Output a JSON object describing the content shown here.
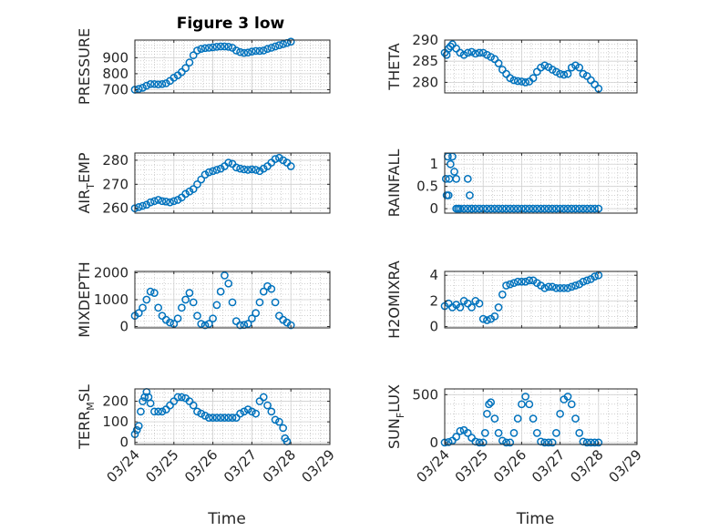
{
  "colors": {
    "marker": "#0072BD",
    "axis": "#262626",
    "grid": "#b3b3b3",
    "background": "#ffffff"
  },
  "chart_data": [
    {
      "type": "scatter",
      "id": "pressure",
      "title": "Figure 3 low",
      "ylabel_parts": [
        "PRESSURE"
      ],
      "xlabel": "",
      "ylim": [
        680,
        1010
      ],
      "yticks": [
        700,
        800,
        900
      ],
      "xlim": [
        0,
        5
      ],
      "xticks": [
        0,
        1,
        2,
        3,
        4,
        5
      ],
      "xticklabels": [
        "03/24",
        "03/25",
        "03/26",
        "03/27",
        "03/28",
        "03/29"
      ],
      "show_xticklabels": false,
      "grid": true,
      "x": [
        0.0,
        0.1,
        0.2,
        0.3,
        0.4,
        0.5,
        0.6,
        0.7,
        0.8,
        0.9,
        1.0,
        1.1,
        1.2,
        1.3,
        1.4,
        1.5,
        1.6,
        1.7,
        1.8,
        1.9,
        2.0,
        2.1,
        2.2,
        2.3,
        2.4,
        2.5,
        2.6,
        2.7,
        2.8,
        2.9,
        3.0,
        3.1,
        3.2,
        3.3,
        3.4,
        3.5,
        3.6,
        3.7,
        3.8,
        3.9,
        4.0
      ],
      "y": [
        700,
        705,
        712,
        725,
        735,
        735,
        733,
        735,
        740,
        755,
        775,
        790,
        810,
        835,
        870,
        915,
        945,
        955,
        960,
        962,
        965,
        968,
        970,
        970,
        968,
        962,
        945,
        935,
        930,
        932,
        938,
        942,
        942,
        945,
        955,
        962,
        970,
        978,
        985,
        992,
        1000
      ]
    },
    {
      "type": "scatter",
      "id": "theta",
      "ylabel_parts": [
        "THETA"
      ],
      "xlabel": "",
      "ylim": [
        277.5,
        290
      ],
      "yticks": [
        280,
        285,
        290
      ],
      "xlim": [
        0,
        5
      ],
      "xticks": [
        0,
        1,
        2,
        3,
        4,
        5
      ],
      "xticklabels": [
        "03/24",
        "03/25",
        "03/26",
        "03/27",
        "03/28",
        "03/29"
      ],
      "show_xticklabels": false,
      "grid": true,
      "x": [
        0.0,
        0.05,
        0.1,
        0.15,
        0.2,
        0.3,
        0.4,
        0.5,
        0.6,
        0.7,
        0.8,
        0.9,
        1.0,
        1.1,
        1.2,
        1.3,
        1.4,
        1.5,
        1.6,
        1.7,
        1.8,
        1.9,
        2.0,
        2.1,
        2.2,
        2.3,
        2.4,
        2.5,
        2.6,
        2.7,
        2.8,
        2.9,
        3.0,
        3.1,
        3.2,
        3.3,
        3.4,
        3.5,
        3.6,
        3.7,
        3.8,
        3.9,
        4.0
      ],
      "y": [
        287,
        286.5,
        288,
        288.5,
        289,
        288,
        287,
        286.5,
        287,
        287.2,
        286.8,
        287,
        287,
        286.5,
        286,
        285.5,
        284.5,
        283,
        282,
        281,
        280.5,
        280.3,
        280.2,
        280,
        280.2,
        281,
        282.5,
        283.5,
        284,
        283.6,
        283,
        282.5,
        282,
        281.8,
        282,
        283.5,
        284,
        283.5,
        282,
        281.5,
        280.5,
        279.5,
        278.5
      ]
    },
    {
      "type": "scatter",
      "id": "air_temp",
      "ylabel_parts": [
        "AIR",
        "T",
        "EMP"
      ],
      "xlabel": "",
      "ylim": [
        258,
        283
      ],
      "yticks": [
        260,
        270,
        280
      ],
      "xlim": [
        0,
        5
      ],
      "xticks": [
        0,
        1,
        2,
        3,
        4,
        5
      ],
      "xticklabels": [
        "03/24",
        "03/25",
        "03/26",
        "03/27",
        "03/28",
        "03/29"
      ],
      "show_xticklabels": false,
      "grid": true,
      "x": [
        0.0,
        0.1,
        0.2,
        0.3,
        0.4,
        0.5,
        0.6,
        0.7,
        0.8,
        0.9,
        1.0,
        1.1,
        1.2,
        1.3,
        1.4,
        1.5,
        1.6,
        1.7,
        1.8,
        1.9,
        2.0,
        2.1,
        2.2,
        2.3,
        2.4,
        2.5,
        2.6,
        2.7,
        2.8,
        2.9,
        3.0,
        3.1,
        3.2,
        3.3,
        3.4,
        3.5,
        3.6,
        3.7,
        3.8,
        3.9,
        4.0
      ],
      "y": [
        260,
        260.5,
        261,
        261.5,
        262.5,
        263,
        263.5,
        263,
        262.8,
        262.5,
        263,
        263.5,
        264.5,
        266,
        267,
        268,
        270,
        272,
        274,
        275,
        275.5,
        276,
        276.5,
        277.5,
        279,
        278.5,
        277,
        276.5,
        276.2,
        276,
        276.2,
        276,
        275.5,
        276.5,
        277.5,
        279,
        280.5,
        281,
        280,
        279,
        277.5
      ]
    },
    {
      "type": "scatter",
      "id": "rainfall",
      "ylabel_parts": [
        "RAINFALL"
      ],
      "xlabel": "",
      "ylim": [
        -0.1,
        1.25
      ],
      "yticks": [
        0,
        0.5,
        1
      ],
      "ytick_labels": [
        "0",
        "0.5",
        "1"
      ],
      "xlim": [
        0,
        5
      ],
      "xticks": [
        0,
        1,
        2,
        3,
        4,
        5
      ],
      "xticklabels": [
        "03/24",
        "03/25",
        "03/26",
        "03/27",
        "03/28",
        "03/29"
      ],
      "show_xticklabels": false,
      "grid": true,
      "x": [
        0.03,
        0.05,
        0.08,
        0.1,
        0.12,
        0.15,
        0.2,
        0.25,
        0.3,
        0.35,
        0.6,
        0.65,
        0.7,
        0.3,
        0.4,
        0.5,
        0.6,
        0.7,
        0.8,
        0.9,
        1.0,
        1.1,
        1.2,
        1.3,
        1.4,
        1.5,
        1.6,
        1.7,
        1.8,
        1.9,
        2.0,
        2.1,
        2.2,
        2.3,
        2.4,
        2.5,
        2.6,
        2.7,
        2.8,
        2.9,
        3.0,
        3.1,
        3.2,
        3.3,
        3.4,
        3.5,
        3.6,
        3.7,
        3.8,
        3.9,
        4.0
      ],
      "y": [
        0.67,
        0.3,
        1.17,
        0.3,
        0.67,
        1.0,
        1.17,
        0.83,
        0.67,
        0.0,
        0.67,
        0.3,
        0.0,
        0.0,
        0.0,
        0.0,
        0.0,
        0.0,
        0.0,
        0.0,
        0.0,
        0.0,
        0.0,
        0.0,
        0.0,
        0.0,
        0.0,
        0.0,
        0.0,
        0.0,
        0.0,
        0.0,
        0.0,
        0.0,
        0.0,
        0.0,
        0.0,
        0.0,
        0.0,
        0.0,
        0.0,
        0.0,
        0.0,
        0.0,
        0.0,
        0.0,
        0.0,
        0.0,
        0.0,
        0.0,
        0.0
      ]
    },
    {
      "type": "scatter",
      "id": "mixdepth",
      "ylabel_parts": [
        "MIXDEPTH"
      ],
      "xlabel": "",
      "ylim": [
        -50,
        2050
      ],
      "yticks": [
        0,
        1000,
        2000
      ],
      "xlim": [
        0,
        5
      ],
      "xticks": [
        0,
        1,
        2,
        3,
        4,
        5
      ],
      "xticklabels": [
        "03/24",
        "03/25",
        "03/26",
        "03/27",
        "03/28",
        "03/29"
      ],
      "show_xticklabels": false,
      "grid": true,
      "x": [
        0.0,
        0.1,
        0.2,
        0.3,
        0.4,
        0.5,
        0.6,
        0.7,
        0.8,
        0.9,
        1.0,
        1.1,
        1.2,
        1.3,
        1.4,
        1.5,
        1.6,
        1.7,
        1.8,
        1.9,
        2.0,
        2.1,
        2.2,
        2.3,
        2.4,
        2.5,
        2.6,
        2.7,
        2.8,
        2.9,
        3.0,
        3.1,
        3.2,
        3.3,
        3.4,
        3.5,
        3.6,
        3.7,
        3.8,
        3.9,
        4.0
      ],
      "y": [
        400,
        500,
        700,
        1000,
        1300,
        1250,
        700,
        400,
        250,
        150,
        100,
        300,
        700,
        1000,
        1250,
        900,
        400,
        100,
        50,
        100,
        300,
        800,
        1300,
        1900,
        1600,
        900,
        200,
        50,
        60,
        100,
        300,
        500,
        900,
        1300,
        1500,
        1400,
        900,
        400,
        250,
        150,
        50
      ]
    },
    {
      "type": "scatter",
      "id": "h2omixra",
      "ylabel_parts": [
        "H2OMIXRA"
      ],
      "xlabel": "",
      "ylim": [
        -0.1,
        4.3
      ],
      "yticks": [
        0,
        2,
        4
      ],
      "xlim": [
        0,
        5
      ],
      "xticks": [
        0,
        1,
        2,
        3,
        4,
        5
      ],
      "xticklabels": [
        "03/24",
        "03/25",
        "03/26",
        "03/27",
        "03/28",
        "03/29"
      ],
      "show_xticklabels": false,
      "grid": true,
      "x": [
        0.0,
        0.1,
        0.2,
        0.3,
        0.4,
        0.5,
        0.6,
        0.7,
        0.8,
        0.9,
        1.0,
        1.1,
        1.2,
        1.3,
        1.4,
        1.5,
        1.6,
        1.7,
        1.8,
        1.9,
        2.0,
        2.1,
        2.2,
        2.3,
        2.4,
        2.5,
        2.6,
        2.7,
        2.8,
        2.9,
        3.0,
        3.1,
        3.2,
        3.3,
        3.4,
        3.5,
        3.6,
        3.7,
        3.8,
        3.9,
        4.0
      ],
      "y": [
        1.6,
        1.8,
        1.5,
        1.7,
        1.5,
        2.0,
        1.8,
        1.5,
        2.0,
        1.8,
        0.6,
        0.5,
        0.6,
        0.8,
        1.5,
        2.5,
        3.2,
        3.3,
        3.4,
        3.5,
        3.5,
        3.5,
        3.6,
        3.6,
        3.4,
        3.2,
        3.0,
        3.1,
        3.1,
        3.0,
        3.0,
        3.0,
        3.0,
        3.1,
        3.2,
        3.3,
        3.5,
        3.6,
        3.7,
        3.9,
        4.0
      ]
    },
    {
      "type": "scatter",
      "id": "terr_msl",
      "ylabel_parts": [
        "TERR",
        "M",
        "SL"
      ],
      "xlabel": "Time",
      "ylim": [
        -10,
        260
      ],
      "yticks": [
        0,
        100,
        200
      ],
      "xlim": [
        0,
        5
      ],
      "xticks": [
        0,
        1,
        2,
        3,
        4,
        5
      ],
      "xticklabels": [
        "03/24",
        "03/25",
        "03/26",
        "03/27",
        "03/28",
        "03/29"
      ],
      "show_xticklabels": true,
      "grid": true,
      "x": [
        0.0,
        0.05,
        0.1,
        0.15,
        0.2,
        0.25,
        0.3,
        0.35,
        0.4,
        0.5,
        0.6,
        0.7,
        0.8,
        0.9,
        1.0,
        1.1,
        1.2,
        1.3,
        1.4,
        1.5,
        1.6,
        1.7,
        1.8,
        1.9,
        2.0,
        2.1,
        2.2,
        2.3,
        2.4,
        2.5,
        2.6,
        2.7,
        2.8,
        2.9,
        3.0,
        3.1,
        3.2,
        3.3,
        3.4,
        3.5,
        3.6,
        3.7,
        3.8,
        3.85,
        3.9
      ],
      "y": [
        40,
        60,
        80,
        150,
        200,
        220,
        245,
        220,
        190,
        150,
        150,
        150,
        160,
        180,
        200,
        220,
        220,
        215,
        200,
        180,
        150,
        140,
        130,
        120,
        120,
        120,
        120,
        120,
        120,
        120,
        120,
        140,
        150,
        160,
        150,
        140,
        200,
        220,
        180,
        150,
        110,
        100,
        70,
        20,
        5
      ]
    },
    {
      "type": "scatter",
      "id": "sun_flux",
      "ylabel_parts": [
        "SUN",
        "F",
        "LUX"
      ],
      "xlabel": "Time",
      "ylim": [
        -20,
        560
      ],
      "yticks": [
        0,
        500
      ],
      "xlim": [
        0,
        5
      ],
      "xticks": [
        0,
        1,
        2,
        3,
        4,
        5
      ],
      "xticklabels": [
        "03/24",
        "03/25",
        "03/26",
        "03/27",
        "03/28",
        "03/29"
      ],
      "show_xticklabels": true,
      "grid": true,
      "x": [
        0.0,
        0.1,
        0.2,
        0.3,
        0.4,
        0.5,
        0.6,
        0.7,
        0.8,
        0.9,
        1.0,
        1.05,
        1.1,
        1.15,
        1.2,
        1.3,
        1.4,
        1.5,
        1.6,
        1.7,
        1.8,
        1.9,
        2.0,
        2.1,
        2.2,
        2.3,
        2.4,
        2.5,
        2.6,
        2.7,
        2.8,
        2.9,
        3.0,
        3.1,
        3.2,
        3.3,
        3.4,
        3.5,
        3.6,
        3.7,
        3.8,
        3.9,
        4.0
      ],
      "y": [
        0,
        5,
        20,
        60,
        120,
        130,
        100,
        50,
        10,
        0,
        0,
        100,
        300,
        400,
        420,
        250,
        100,
        20,
        0,
        0,
        100,
        250,
        400,
        480,
        400,
        250,
        100,
        10,
        0,
        0,
        0,
        100,
        300,
        450,
        480,
        400,
        250,
        100,
        10,
        0,
        0,
        0,
        0
      ]
    }
  ]
}
